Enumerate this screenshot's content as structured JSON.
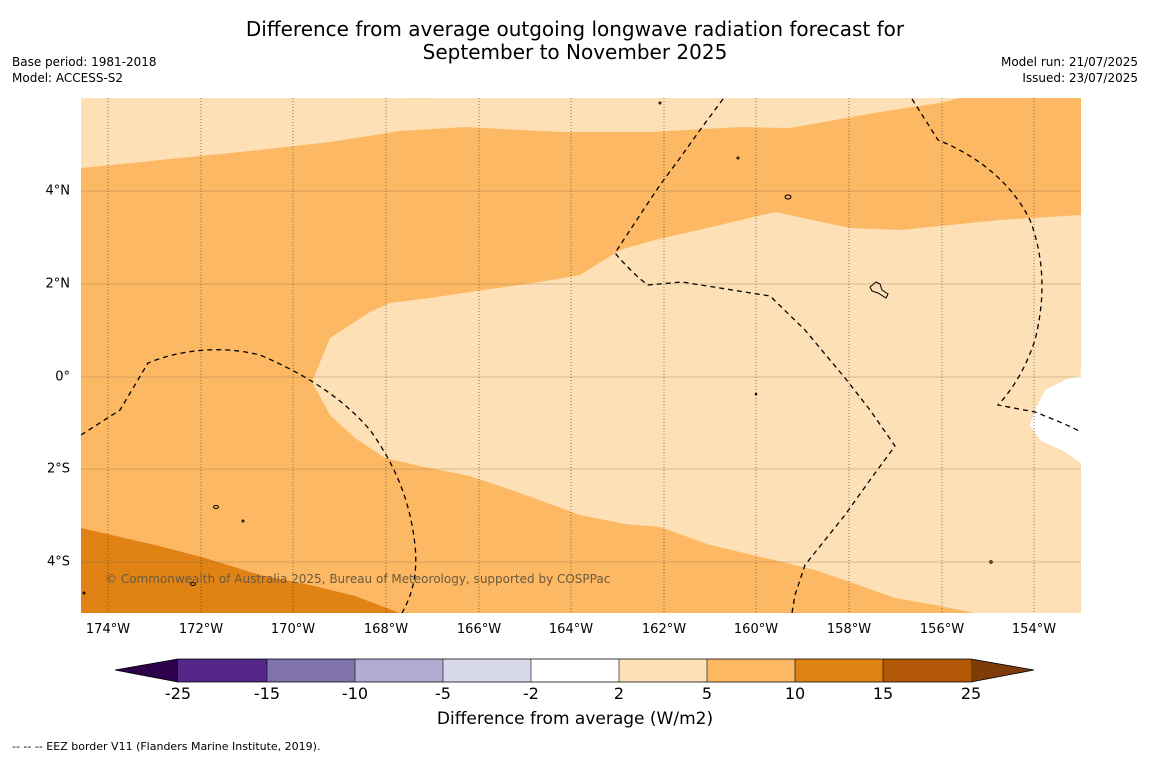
{
  "title_line1": "Difference from average outgoing longwave radiation forecast for",
  "title_line2": "September to November 2025",
  "meta_left": {
    "base_period": "Base period: 1981-2018",
    "model": "Model: ACCESS-S2"
  },
  "meta_right": {
    "model_run": "Model run: 21/07/2025",
    "issued": "Issued: 23/07/2025"
  },
  "copyright": "© Commonwealth of Australia 2025, Bureau of Meteorology, supported by COSPPac",
  "x_ticks": [
    "174°W",
    "172°W",
    "170°W",
    "168°W",
    "166°W",
    "164°W",
    "162°W",
    "160°W",
    "158°W",
    "156°W",
    "154°W"
  ],
  "y_ticks": [
    "4°N",
    "2°N",
    "0°",
    "2°S",
    "4°S"
  ],
  "colorbar": {
    "title": "Difference from average (W/m2)",
    "labels": [
      "-25",
      "-15",
      "-10",
      "-5",
      "-2",
      "2",
      "5",
      "10",
      "15",
      "25"
    ],
    "colors": [
      "#2d004b",
      "#542788",
      "#8073ac",
      "#b2abd2",
      "#d8daeb",
      "#ffffff",
      "#fee0b6",
      "#fdb863",
      "#e08214",
      "#b35806",
      "#7f3b08"
    ]
  },
  "footnote": "--  --  -- EEZ border V11 (Flanders Marine Institute, 2019)."
}
